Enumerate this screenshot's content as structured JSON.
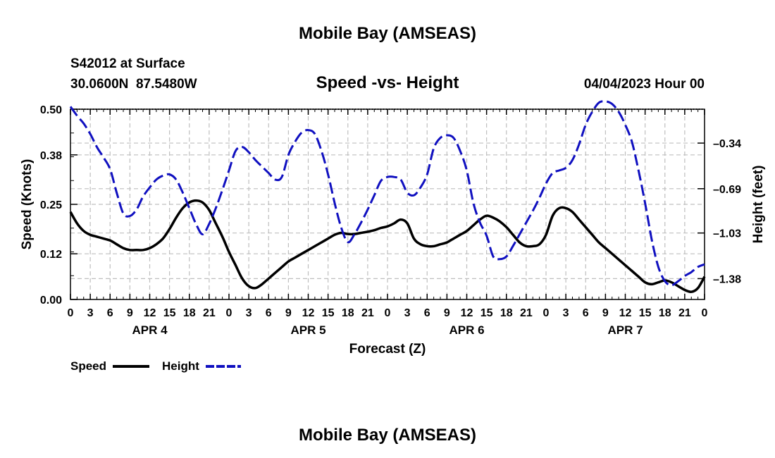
{
  "page": {
    "title_top": "Mobile Bay (AMSEAS)",
    "station_line": "S42012 at Surface",
    "coords_line": "30.0600N  87.5480W",
    "date_line": "04/04/2023 Hour 00",
    "title_bottom": "Mobile Bay (AMSEAS)"
  },
  "chart_data": {
    "type": "line",
    "title": "Speed -vs- Height",
    "xlabel": "Forecast (Z)",
    "ylabel": "Speed (Knots)",
    "y2label": "Height (feet)",
    "x_tick_labels": [
      "0",
      "3",
      "6",
      "9",
      "12",
      "15",
      "18",
      "21",
      "0",
      "3",
      "6",
      "9",
      "12",
      "15",
      "18",
      "21",
      "0",
      "3",
      "6",
      "9",
      "12",
      "15",
      "18",
      "21",
      "0",
      "3",
      "6",
      "9",
      "12",
      "15",
      "18",
      "21",
      "0"
    ],
    "day_labels": [
      {
        "label": "APR 4",
        "hour": 12
      },
      {
        "label": "APR 5",
        "hour": 36
      },
      {
        "label": "APR 6",
        "hour": 60
      },
      {
        "label": "APR 7",
        "hour": 84
      }
    ],
    "x_range": [
      0,
      96
    ],
    "ylim": [
      0,
      0.5
    ],
    "y_ticks": [
      "0.00",
      "0.12",
      "0.25",
      "0.38",
      "0.50"
    ],
    "y2lim": [
      -1.54,
      -0.08
    ],
    "y2_ticks": [
      "-0.34",
      "-0.69",
      "-1.03",
      "-1.38"
    ],
    "grid": true,
    "legend_position": "bottom-left",
    "series": [
      {
        "name": "Speed",
        "axis": "left",
        "color": "#000000",
        "style": "solid",
        "x": [
          0,
          1,
          2,
          3,
          4,
          5,
          6,
          7,
          8,
          9,
          10,
          11,
          12,
          13,
          14,
          15,
          16,
          17,
          18,
          19,
          20,
          21,
          22,
          23,
          24,
          25,
          26,
          27,
          28,
          29,
          30,
          31,
          32,
          33,
          34,
          35,
          36,
          37,
          38,
          39,
          40,
          41,
          42,
          43,
          44,
          45,
          46,
          47,
          48,
          49,
          50,
          51,
          52,
          53,
          54,
          55,
          56,
          57,
          58,
          59,
          60,
          61,
          62,
          63,
          64,
          65,
          66,
          67,
          68,
          69,
          70,
          71,
          72,
          73,
          74,
          75,
          76,
          77,
          78,
          79,
          80,
          81,
          82,
          83,
          84,
          85,
          86,
          87,
          88,
          89,
          90,
          91,
          92,
          93,
          94,
          95,
          96
        ],
        "values": [
          0.23,
          0.2,
          0.18,
          0.17,
          0.165,
          0.16,
          0.155,
          0.145,
          0.135,
          0.13,
          0.13,
          0.13,
          0.135,
          0.145,
          0.16,
          0.185,
          0.215,
          0.24,
          0.255,
          0.26,
          0.255,
          0.235,
          0.2,
          0.165,
          0.125,
          0.09,
          0.055,
          0.035,
          0.03,
          0.04,
          0.055,
          0.07,
          0.085,
          0.1,
          0.11,
          0.12,
          0.13,
          0.14,
          0.15,
          0.16,
          0.17,
          0.175,
          0.172,
          0.172,
          0.175,
          0.178,
          0.182,
          0.188,
          0.192,
          0.2,
          0.21,
          0.2,
          0.16,
          0.145,
          0.14,
          0.14,
          0.145,
          0.15,
          0.16,
          0.17,
          0.18,
          0.195,
          0.21,
          0.22,
          0.215,
          0.205,
          0.19,
          0.17,
          0.15,
          0.14,
          0.14,
          0.145,
          0.17,
          0.22,
          0.24,
          0.24,
          0.23,
          0.21,
          0.19,
          0.17,
          0.15,
          0.135,
          0.12,
          0.105,
          0.09,
          0.075,
          0.06,
          0.045,
          0.04,
          0.045,
          0.05,
          0.045,
          0.035,
          0.025,
          0.02,
          0.03,
          0.06
        ]
      },
      {
        "name": "Height",
        "axis": "right",
        "color": "#1010c0",
        "style": "dashed",
        "x": [
          0,
          1,
          2,
          3,
          4,
          5,
          6,
          7,
          8,
          9,
          10,
          11,
          12,
          13,
          14,
          15,
          16,
          17,
          18,
          19,
          20,
          21,
          22,
          23,
          24,
          25,
          26,
          27,
          28,
          29,
          30,
          31,
          32,
          33,
          34,
          35,
          36,
          37,
          38,
          39,
          40,
          41,
          42,
          43,
          44,
          45,
          46,
          47,
          48,
          49,
          50,
          51,
          52,
          53,
          54,
          55,
          56,
          57,
          58,
          59,
          60,
          61,
          62,
          63,
          64,
          65,
          66,
          67,
          68,
          69,
          70,
          71,
          72,
          73,
          74,
          75,
          76,
          77,
          78,
          79,
          80,
          81,
          82,
          83,
          84,
          85,
          86,
          87,
          88,
          89,
          90,
          91,
          92,
          93,
          94,
          95,
          96
        ],
        "values": [
          -0.06,
          -0.13,
          -0.19,
          -0.27,
          -0.37,
          -0.45,
          -0.54,
          -0.72,
          -0.88,
          -0.9,
          -0.85,
          -0.75,
          -0.68,
          -0.62,
          -0.59,
          -0.58,
          -0.62,
          -0.72,
          -0.84,
          -0.96,
          -1.04,
          -0.96,
          -0.84,
          -0.7,
          -0.55,
          -0.4,
          -0.37,
          -0.41,
          -0.47,
          -0.52,
          -0.57,
          -0.62,
          -0.6,
          -0.43,
          -0.33,
          -0.26,
          -0.24,
          -0.27,
          -0.4,
          -0.58,
          -0.8,
          -0.99,
          -1.1,
          -1.04,
          -0.95,
          -0.85,
          -0.74,
          -0.63,
          -0.6,
          -0.6,
          -0.62,
          -0.72,
          -0.74,
          -0.68,
          -0.58,
          -0.38,
          -0.3,
          -0.28,
          -0.3,
          -0.4,
          -0.55,
          -0.8,
          -0.95,
          -1.05,
          -1.21,
          -1.23,
          -1.21,
          -1.13,
          -1.04,
          -0.95,
          -0.86,
          -0.76,
          -0.65,
          -0.57,
          -0.55,
          -0.53,
          -0.47,
          -0.35,
          -0.2,
          -0.1,
          -0.03,
          -0.02,
          -0.04,
          -0.1,
          -0.2,
          -0.33,
          -0.55,
          -0.8,
          -1.08,
          -1.29,
          -1.4,
          -1.43,
          -1.4,
          -1.36,
          -1.33,
          -1.29,
          -1.27
        ]
      }
    ]
  }
}
